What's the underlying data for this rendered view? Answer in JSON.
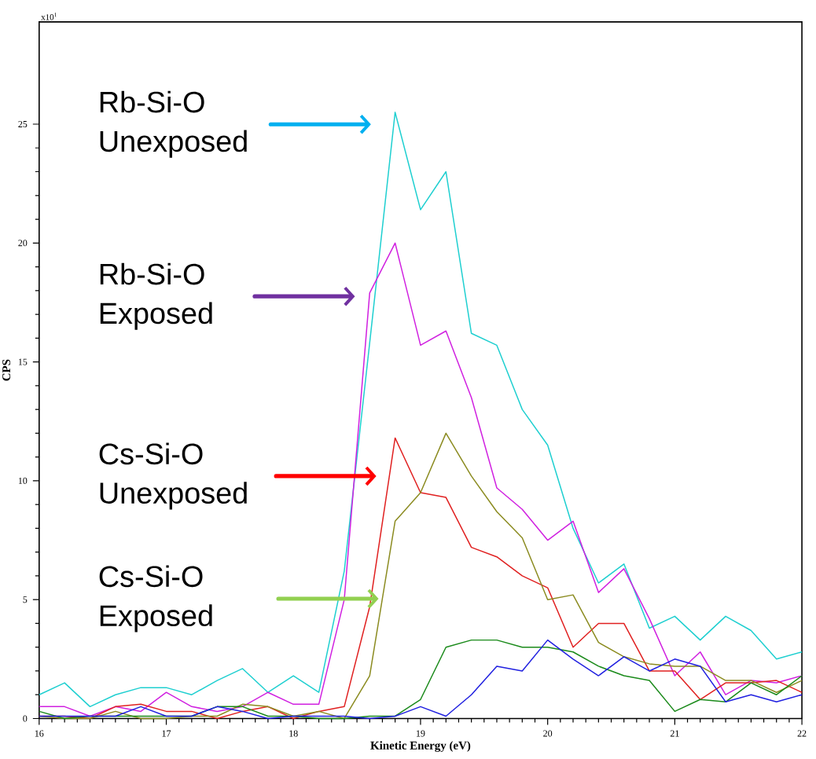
{
  "chart_data": {
    "type": "line",
    "xlabel": "Kinetic Energy (eV)",
    "ylabel": "CPS",
    "x": [
      16,
      16.2,
      16.4,
      16.6,
      16.8,
      17,
      17.2,
      17.4,
      17.6,
      17.8,
      18,
      18.2,
      18.4,
      18.6,
      18.8,
      19,
      19.2,
      19.4,
      19.6,
      19.8,
      20,
      20.2,
      20.4,
      20.6,
      20.8,
      21,
      21.2,
      21.4,
      21.6,
      21.8,
      22
    ],
    "xlim": [
      16,
      22
    ],
    "ylim": [
      0,
      29.3
    ],
    "xticks": [
      16,
      17,
      18,
      19,
      20,
      21,
      22
    ],
    "yticks": [
      0,
      5,
      10,
      15,
      20,
      25
    ],
    "grid": false,
    "marker": "none",
    "line_style": "solid",
    "series": [
      {
        "color": "#1ecfd0",
        "values": [
          1.0,
          1.5,
          0.5,
          1.0,
          1.3,
          1.3,
          1.0,
          1.6,
          2.1,
          1.1,
          1.8,
          1.1,
          6.2,
          15.8,
          25.5,
          21.4,
          23.0,
          16.2,
          15.7,
          13.0,
          11.5,
          8.0,
          5.7,
          6.5,
          3.8,
          4.3,
          3.3,
          4.3,
          3.7,
          2.5,
          2.8
        ]
      },
      {
        "color": "#d020e0",
        "values": [
          0.5,
          0.5,
          0.1,
          0.5,
          0.3,
          1.1,
          0.5,
          0.3,
          0.5,
          1.1,
          0.6,
          0.6,
          5.0,
          17.9,
          20.0,
          15.7,
          16.3,
          13.5,
          9.7,
          8.8,
          7.5,
          8.3,
          5.3,
          6.3,
          4.2,
          1.8,
          2.8,
          1.0,
          1.6,
          1.5,
          1.8
        ]
      },
      {
        "color": "#e02020",
        "values": [
          0.1,
          0.1,
          0,
          0.5,
          0.6,
          0.3,
          0.3,
          0,
          0.3,
          0.5,
          0,
          0.3,
          0.5,
          4.7,
          11.8,
          9.5,
          9.3,
          7.2,
          6.8,
          6.0,
          5.5,
          3.0,
          4.0,
          4.0,
          2.0,
          2.0,
          0.8,
          1.5,
          1.5,
          1.6,
          1.1
        ]
      },
      {
        "color": "#8b8b20",
        "values": [
          0.1,
          0,
          0,
          0.3,
          0,
          0,
          0.1,
          0.1,
          0.6,
          0.5,
          0.1,
          0.3,
          0,
          1.8,
          8.3,
          9.5,
          12.0,
          10.2,
          8.7,
          7.6,
          5.0,
          5.2,
          3.2,
          2.6,
          2.3,
          2.2,
          2.2,
          1.6,
          1.6,
          1.1,
          1.6
        ]
      },
      {
        "color": "#1a8a1a",
        "values": [
          0.3,
          0,
          0.1,
          0.1,
          0.1,
          0.1,
          0.1,
          0.5,
          0.5,
          0.1,
          0.1,
          0,
          0,
          0.1,
          0.1,
          0.8,
          3.0,
          3.3,
          3.3,
          3.0,
          3.0,
          2.8,
          2.2,
          1.8,
          1.6,
          0.3,
          0.8,
          0.7,
          1.5,
          1.0,
          1.8
        ]
      },
      {
        "color": "#2020e0",
        "values": [
          0.1,
          0.1,
          0.1,
          0.1,
          0.5,
          0.1,
          0.1,
          0.5,
          0.3,
          0,
          0.1,
          0.1,
          0.1,
          0,
          0.1,
          0.5,
          0.1,
          1.0,
          2.2,
          2.0,
          3.3,
          2.5,
          1.8,
          2.6,
          2.0,
          2.5,
          2.2,
          0.7,
          1.0,
          0.7,
          1.0
        ]
      }
    ],
    "annotations": [
      "x10$^{1}$",
      "Rb-Si-O Unexposed",
      "Rb-Si-O Exposed",
      "Cs-Si-O Unexposed",
      "Cs-Si-O Exposed"
    ]
  }
}
